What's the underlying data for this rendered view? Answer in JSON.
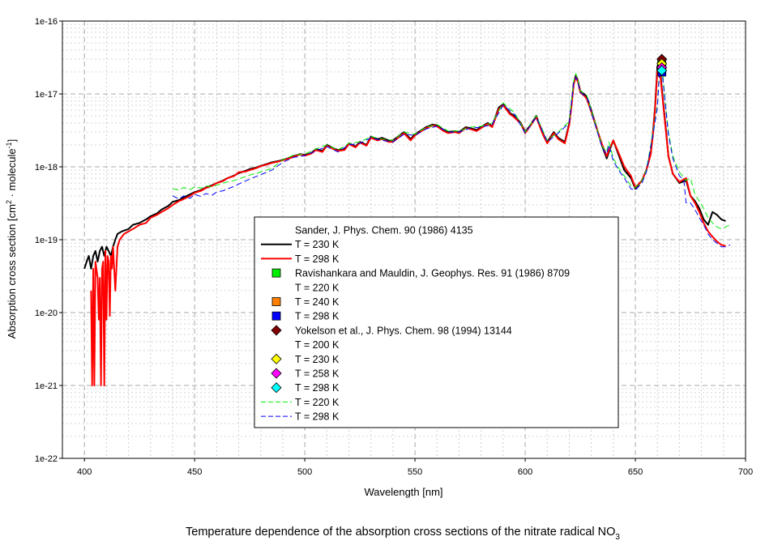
{
  "chart_data": {
    "type": "line",
    "title": "",
    "caption": {
      "text": "Temperature dependence of the absorption cross sections of the nitrate radical NO",
      "subscript": "3"
    },
    "xlabel": "Wavelength [nm]",
    "ylabel": {
      "part1": "Absorption cross section [cm",
      "sup1": "2",
      "part2": " · molecule",
      "sup2": "-1",
      "part3": "]"
    },
    "xlim": [
      390,
      700
    ],
    "ylim": [
      1e-22,
      1e-16
    ],
    "yscale": "log",
    "grid": true,
    "legend_position": "lower-center",
    "x_ticks": [
      400,
      450,
      500,
      550,
      600,
      650,
      700
    ],
    "x_tick_labels": [
      "400",
      "450",
      "500",
      "550",
      "600",
      "650",
      "700"
    ],
    "y_ticks": [
      1e-22,
      1e-21,
      1e-20,
      1e-19,
      1e-18,
      1e-17,
      1e-16
    ],
    "y_tick_labels": [
      "1e-22",
      "1e-21",
      "1e-20",
      "1e-19",
      "1e-18",
      "1e-17",
      "1e-16"
    ],
    "legend": [
      {
        "label": "Sander, J. Phys. Chem. 90 (1986) 4135",
        "symbol": "none"
      },
      {
        "label": "T = 230 K",
        "symbol": "line",
        "color": "#000000",
        "style": "solid"
      },
      {
        "label": "T = 298 K",
        "symbol": "line",
        "color": "#ff0000",
        "style": "solid"
      },
      {
        "label": "Ravishankara and Mauldin, J. Geophys. Res. 91 (1986) 8709",
        "symbol": "square",
        "color": "#00ee00"
      },
      {
        "label": "T = 220 K",
        "symbol": "none"
      },
      {
        "label": "T = 240 K",
        "symbol": "square",
        "color": "#ff8000"
      },
      {
        "label": "T = 298 K",
        "symbol": "square",
        "color": "#0000ff"
      },
      {
        "label": "Yokelson et al., J. Phys. Chem. 98 (1994) 13144",
        "symbol": "diamond",
        "color": "#800000"
      },
      {
        "label": "T = 200 K",
        "symbol": "none"
      },
      {
        "label": "T = 230 K",
        "symbol": "diamond",
        "color": "#ffff00"
      },
      {
        "label": "T = 258 K",
        "symbol": "diamond",
        "color": "#ff00ff"
      },
      {
        "label": "T = 298 K",
        "symbol": "diamond",
        "color": "#00ffff"
      },
      {
        "label": "T = 220 K",
        "symbol": "line",
        "color": "#00ee00",
        "style": "dashed"
      },
      {
        "label": "T = 298 K",
        "symbol": "line",
        "color": "#0000ff",
        "style": "dashed"
      }
    ],
    "series": [
      {
        "name": "Sander 230 K",
        "color": "#000000",
        "width": 2,
        "dash": "",
        "x": [
          400,
          401,
          402,
          403,
          404,
          405,
          406,
          407,
          408,
          409,
          410,
          411,
          412,
          413,
          414,
          415,
          417,
          420,
          422,
          425,
          428,
          430,
          433,
          435,
          438,
          440,
          443,
          445,
          448,
          450,
          453,
          455,
          458,
          460,
          463,
          465,
          468,
          470,
          473,
          475,
          478,
          480,
          483,
          485,
          488,
          490,
          493,
          495,
          498,
          500,
          503,
          505,
          508,
          510,
          513,
          515,
          518,
          520,
          523,
          525,
          528,
          530,
          533,
          535,
          538,
          540,
          543,
          545,
          548,
          550,
          553,
          555,
          558,
          560,
          563,
          565,
          568,
          570,
          573,
          575,
          578,
          580,
          583,
          585,
          588,
          590,
          593,
          595,
          598,
          600,
          603,
          605,
          608,
          610,
          613,
          615,
          618,
          620,
          621,
          622,
          623,
          624,
          625,
          627,
          628,
          630,
          633,
          635,
          637,
          638,
          640,
          643,
          645,
          648,
          650,
          653,
          655,
          657,
          658,
          659,
          660,
          661,
          662,
          663,
          664,
          665,
          667,
          670,
          673,
          675,
          677,
          679,
          681,
          683,
          685,
          687,
          689,
          691
        ],
        "y": [
          4e-20,
          5e-20,
          6e-20,
          4e-20,
          6e-20,
          7e-20,
          5e-20,
          7e-20,
          8e-20,
          6e-20,
          8e-20,
          7e-20,
          6e-20,
          8e-20,
          1e-19,
          1.2e-19,
          1.3e-19,
          1.4e-19,
          1.6e-19,
          1.7e-19,
          1.9e-19,
          2.1e-19,
          2.3e-19,
          2.6e-19,
          2.9e-19,
          3.3e-19,
          3.5e-19,
          3.8e-19,
          4.2e-19,
          4.5e-19,
          4.8e-19,
          5.2e-19,
          5.6e-19,
          6e-19,
          6.5e-19,
          7e-19,
          7.6e-19,
          8.2e-19,
          8.8e-19,
          9.3e-19,
          9.8e-19,
          1.03e-18,
          1.1e-18,
          1.15e-18,
          1.2e-18,
          1.25e-18,
          1.32e-18,
          1.4e-18,
          1.5e-18,
          1.45e-18,
          1.55e-18,
          1.75e-18,
          1.65e-18,
          2e-18,
          1.8e-18,
          1.7e-18,
          1.75e-18,
          2.1e-18,
          1.9e-18,
          2.2e-18,
          2e-18,
          2.6e-18,
          2.4e-18,
          2.5e-18,
          2.3e-18,
          2.3e-18,
          2.7e-18,
          3e-18,
          2.4e-18,
          2.8e-18,
          3.2e-18,
          3.5e-18,
          3.8e-18,
          3.7e-18,
          3.2e-18,
          3e-18,
          3.1e-18,
          3e-18,
          3.5e-18,
          3.4e-18,
          3.2e-18,
          3.5e-18,
          4e-18,
          3.6e-18,
          6.5e-18,
          7.2e-18,
          5.5e-18,
          5e-18,
          4e-18,
          3e-18,
          4e-18,
          5e-18,
          2.9e-18,
          2.2e-18,
          3e-18,
          2.5e-18,
          2.2e-18,
          4e-18,
          7e-18,
          1.4e-17,
          1.8e-17,
          1.5e-17,
          1.1e-17,
          9.8e-18,
          9e-18,
          6e-18,
          3e-18,
          1.9e-18,
          1.3e-18,
          1.6e-18,
          2.3e-18,
          1.3e-18,
          9e-19,
          7e-19,
          5e-19,
          6.5e-19,
          9e-19,
          1.6e-18,
          3e-18,
          7e-18,
          2.4e-17,
          2.7e-17,
          1.2e-17,
          6e-18,
          3e-18,
          1.4e-18,
          8e-19,
          6e-19,
          6.5e-19,
          4e-19,
          3.4e-19,
          2.7e-19,
          1.9e-19,
          1.6e-19,
          2.4e-19,
          2.2e-19,
          1.9e-19,
          1.8e-19
        ]
      },
      {
        "name": "Sander 298 K",
        "color": "#ff0000",
        "width": 2,
        "dash": "",
        "x": [
          403,
          403.5,
          404,
          404.5,
          405,
          406,
          406.5,
          407,
          407.5,
          408,
          408.5,
          409,
          409.5,
          410,
          410.5,
          411,
          411.5,
          412,
          412.5,
          413,
          414,
          415,
          416,
          418,
          420,
          422,
          425,
          428,
          430,
          433,
          435,
          438,
          440,
          443,
          445,
          448,
          450,
          453,
          455,
          458,
          460,
          463,
          465,
          468,
          470,
          473,
          475,
          478,
          480,
          483,
          485,
          488,
          490,
          493,
          495,
          498,
          500,
          503,
          505,
          508,
          510,
          513,
          515,
          518,
          520,
          523,
          525,
          528,
          530,
          533,
          535,
          538,
          540,
          543,
          545,
          548,
          550,
          553,
          555,
          558,
          560,
          563,
          565,
          568,
          570,
          573,
          575,
          578,
          580,
          583,
          585,
          588,
          590,
          593,
          595,
          598,
          600,
          603,
          605,
          608,
          610,
          613,
          615,
          618,
          620,
          621,
          622,
          623,
          624,
          625,
          627,
          628,
          630,
          633,
          635,
          637,
          638,
          640,
          643,
          645,
          648,
          650,
          653,
          655,
          657,
          658,
          659,
          660,
          661,
          662,
          663,
          664,
          665,
          667,
          670,
          673,
          675,
          677,
          679,
          681,
          683,
          685,
          687,
          689,
          691
        ],
        "y": [
          2e-20,
          1e-21,
          4e-20,
          1e-21,
          5e-20,
          3e-20,
          8e-21,
          3e-20,
          1e-21,
          4e-20,
          5e-20,
          1e-21,
          7e-20,
          8e-21,
          6e-20,
          5e-20,
          9e-21,
          6e-20,
          4e-20,
          8e-20,
          2e-20,
          8e-20,
          1e-19,
          1.2e-19,
          1.3e-19,
          1.4e-19,
          1.6e-19,
          1.7e-19,
          2e-19,
          2.2e-19,
          2.4e-19,
          2.7e-19,
          3e-19,
          3.4e-19,
          3.6e-19,
          4e-19,
          4.4e-19,
          4.7e-19,
          5.1e-19,
          5.5e-19,
          6e-19,
          6.4e-19,
          7e-19,
          7.5e-19,
          8.4e-19,
          8.6e-19,
          9e-19,
          9.6e-19,
          1.02e-18,
          1.08e-18,
          1.13e-18,
          1.18e-18,
          1.23e-18,
          1.3e-18,
          1.38e-18,
          1.48e-18,
          1.42e-18,
          1.52e-18,
          1.7e-18,
          1.6e-18,
          1.95e-18,
          1.75e-18,
          1.65e-18,
          1.7e-18,
          2.05e-18,
          1.85e-18,
          2.15e-18,
          1.95e-18,
          2.5e-18,
          2.3e-18,
          2.4e-18,
          2.2e-18,
          2.2e-18,
          2.6e-18,
          2.9e-18,
          2.3e-18,
          2.7e-18,
          3.1e-18,
          3.4e-18,
          3.7e-18,
          3.6e-18,
          3.1e-18,
          2.9e-18,
          3e-18,
          2.9e-18,
          3.4e-18,
          3.3e-18,
          3.1e-18,
          3.4e-18,
          3.9e-18,
          3.5e-18,
          6.2e-18,
          7e-18,
          5.3e-18,
          4.8e-18,
          3.9e-18,
          2.9e-18,
          3.9e-18,
          4.8e-18,
          2.8e-18,
          2.1e-18,
          2.9e-18,
          2.4e-18,
          2.1e-18,
          3.8e-18,
          6.8e-18,
          1.35e-17,
          1.7e-17,
          1.45e-17,
          1.05e-17,
          9.3e-18,
          8.5e-18,
          5.7e-18,
          3e-18,
          2e-18,
          1.4e-18,
          1.7e-18,
          2.3e-18,
          1.4e-18,
          1e-18,
          7.5e-19,
          5.2e-19,
          6.5e-19,
          9e-19,
          1.5e-18,
          2.8e-18,
          6.5e-18,
          2.1e-17,
          2.3e-17,
          1.1e-17,
          5.5e-18,
          2.8e-18,
          1.4e-18,
          8e-19,
          6.2e-19,
          7e-19,
          4e-19,
          3.2e-19,
          2.4e-19,
          1.7e-19,
          1.3e-19,
          1.1e-19,
          9.5e-20,
          8.5e-20,
          8.2e-20
        ]
      },
      {
        "name": "Yokelson 220 K",
        "color": "#00ee00",
        "width": 1,
        "dash": "7 4",
        "x": [
          440,
          443,
          445,
          448,
          450,
          453,
          455,
          458,
          460,
          463,
          465,
          468,
          470,
          475,
          480,
          485,
          490,
          495,
          500,
          505,
          510,
          515,
          520,
          525,
          530,
          535,
          540,
          545,
          550,
          555,
          560,
          565,
          570,
          575,
          580,
          585,
          590,
          595,
          600,
          605,
          610,
          615,
          620,
          622,
          623,
          624,
          625,
          628,
          630,
          635,
          637,
          638,
          640,
          643,
          645,
          648,
          650,
          653,
          655,
          658,
          660,
          661,
          662,
          663,
          664,
          665,
          667,
          670,
          673,
          675,
          677,
          679,
          681,
          683,
          685,
          687,
          689,
          691,
          693
        ],
        "y": [
          5e-19,
          4.8e-19,
          5.2e-19,
          4.9e-19,
          5.3e-19,
          5.1e-19,
          5.5e-19,
          5.3e-19,
          5.6e-19,
          6e-19,
          6.2e-19,
          6.5e-19,
          6.8e-19,
          7.7e-19,
          8.5e-19,
          9.5e-19,
          1.25e-18,
          1.45e-18,
          1.5e-18,
          1.75e-18,
          2e-18,
          1.7e-18,
          2.1e-18,
          2.2e-18,
          2.6e-18,
          2.4e-18,
          2.3e-18,
          3e-18,
          2.8e-18,
          3.5e-18,
          3.8e-18,
          3.1e-18,
          3.1e-18,
          3.5e-18,
          3.6e-18,
          4e-18,
          7.5e-18,
          5.6e-18,
          3e-18,
          5e-18,
          2.3e-18,
          3e-18,
          4.2e-18,
          1.5e-17,
          1.9e-17,
          1.5e-17,
          1.1e-17,
          9.5e-18,
          6e-18,
          1.9e-18,
          1.6e-18,
          2.2e-18,
          1.3e-18,
          9e-19,
          7.5e-19,
          5.5e-19,
          5.2e-19,
          6.5e-19,
          9e-19,
          3e-18,
          7e-18,
          2.4e-17,
          2.6e-17,
          1.2e-17,
          6e-18,
          3e-18,
          1.4e-18,
          8.5e-19,
          6.5e-19,
          7e-19,
          4.2e-19,
          3.4e-19,
          2.7e-19,
          2e-19,
          1.7e-19,
          1.5e-19,
          1.4e-19,
          1.5e-19,
          1.6e-19
        ]
      },
      {
        "name": "Yokelson 298 K",
        "color": "#0000ff",
        "width": 1,
        "dash": "7 4",
        "x": [
          440,
          443,
          445,
          448,
          450,
          453,
          455,
          458,
          460,
          463,
          465,
          468,
          470,
          475,
          480,
          485,
          490,
          495,
          500,
          505,
          510,
          515,
          520,
          525,
          530,
          535,
          540,
          545,
          550,
          555,
          560,
          565,
          570,
          575,
          580,
          585,
          590,
          595,
          600,
          605,
          610,
          615,
          620,
          622,
          623,
          624,
          625,
          628,
          630,
          635,
          637,
          638,
          640,
          643,
          645,
          648,
          650,
          653,
          655,
          658,
          660,
          661,
          662,
          663,
          664,
          665,
          667,
          670,
          672,
          673,
          675,
          677,
          679,
          681,
          683,
          685,
          687,
          689,
          691,
          693
        ],
        "y": [
          4e-19,
          3.6e-19,
          4e-19,
          3.7e-19,
          4.2e-19,
          3.9e-19,
          4.3e-19,
          4.1e-19,
          4.5e-19,
          4.7e-19,
          5e-19,
          5.4e-19,
          5.8e-19,
          6.8e-19,
          7.8e-19,
          9e-19,
          1.15e-18,
          1.35e-18,
          1.42e-18,
          1.65e-18,
          1.9e-18,
          1.6e-18,
          2e-18,
          2.1e-18,
          2.5e-18,
          2.3e-18,
          2.2e-18,
          2.8e-18,
          2.7e-18,
          3.3e-18,
          3.6e-18,
          3e-18,
          3e-18,
          3.4e-18,
          3.5e-18,
          3.8e-18,
          7e-18,
          5.3e-18,
          2.9e-18,
          4.8e-18,
          2.2e-18,
          2.9e-18,
          4e-18,
          1.4e-17,
          1.7e-17,
          1.4e-17,
          1.05e-17,
          9e-18,
          5.6e-18,
          1.8e-18,
          1.5e-18,
          2e-18,
          1.2e-18,
          8.5e-19,
          7e-19,
          5e-19,
          4.8e-19,
          6e-19,
          8.5e-19,
          2.8e-18,
          6.5e-18,
          2e-17,
          2.2e-17,
          1.1e-17,
          5.5e-18,
          2.8e-18,
          1.3e-18,
          7.5e-19,
          6.5e-19,
          3.2e-19,
          3.2e-19,
          2.6e-19,
          2e-19,
          1.6e-19,
          1.2e-19,
          1e-19,
          9e-20,
          8e-20,
          8e-20,
          8.5e-20
        ]
      }
    ],
    "points": [
      {
        "name": "Ravishankara 220 K",
        "marker": "square",
        "color": "#00ee00",
        "x": 662,
        "y": 2.7e-17
      },
      {
        "name": "Ravishankara 240 K",
        "marker": "square",
        "color": "#ff8000",
        "x": 662,
        "y": 2.4e-17
      },
      {
        "name": "Ravishankara 298 K",
        "marker": "square",
        "color": "#0000ff",
        "x": 662,
        "y": 2e-17
      },
      {
        "name": "Yokelson 200 K",
        "marker": "diamond",
        "color": "#800000",
        "x": 662,
        "y": 3e-17
      },
      {
        "name": "Yokelson 230 K",
        "marker": "diamond",
        "color": "#ffff00",
        "x": 662,
        "y": 2.6e-17
      },
      {
        "name": "Yokelson 258 K",
        "marker": "diamond",
        "color": "#ff00ff",
        "x": 662,
        "y": 2.3e-17
      },
      {
        "name": "Yokelson 298 K",
        "marker": "diamond",
        "color": "#00ffff",
        "x": 662,
        "y": 2.1e-17
      }
    ]
  }
}
